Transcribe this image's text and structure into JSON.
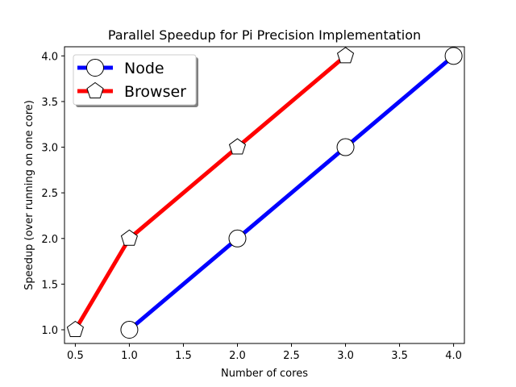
{
  "chart_data": {
    "type": "line",
    "title": "Parallel Speedup for Pi Precision Implementation",
    "xlabel": "Number of cores",
    "ylabel": "Speedup (over running on one core)",
    "xlim": [
      0.4,
      4.1
    ],
    "ylim": [
      0.85,
      4.1
    ],
    "xticks": [
      0.5,
      1.0,
      1.5,
      2.0,
      2.5,
      3.0,
      3.5,
      4.0
    ],
    "xtick_labels": [
      "0.5",
      "1.0",
      "1.5",
      "2.0",
      "2.5",
      "3.0",
      "3.5",
      "4.0"
    ],
    "yticks": [
      1.0,
      1.5,
      2.0,
      2.5,
      3.0,
      3.5,
      4.0
    ],
    "ytick_labels": [
      "1.0",
      "1.5",
      "2.0",
      "2.5",
      "3.0",
      "3.5",
      "4.0"
    ],
    "grid": false,
    "legend_position": "upper-left",
    "series": [
      {
        "name": "Node",
        "color": "#0000ff",
        "marker": "circle",
        "x": [
          1,
          2,
          3,
          4
        ],
        "y": [
          1,
          2,
          3,
          4
        ]
      },
      {
        "name": "Browser",
        "color": "#ff0000",
        "marker": "pentagon",
        "x": [
          0.5,
          1,
          2,
          3
        ],
        "y": [
          1,
          2,
          3,
          4
        ]
      }
    ]
  }
}
